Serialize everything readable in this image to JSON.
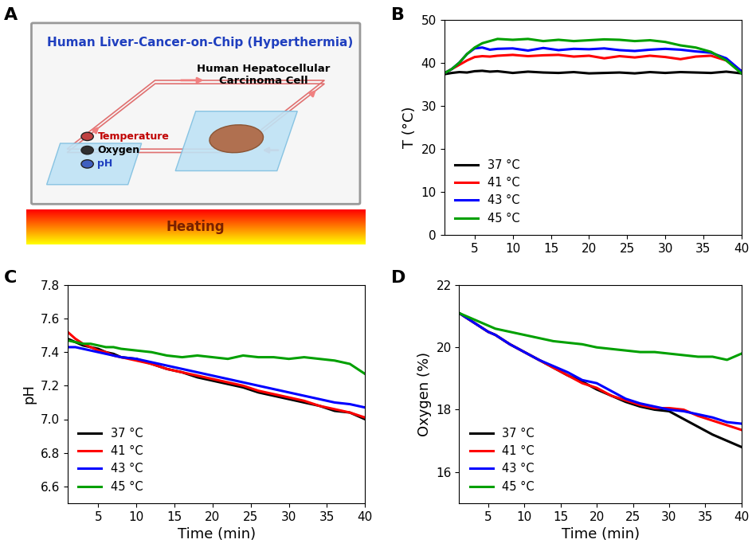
{
  "diagram": {
    "panel_label": "A",
    "title": "Human Liver-Cancer-on-Chip (Hyperthermia)",
    "cell_label": "Human Hepatocellular\nCarcinoma Cell",
    "sensors": [
      "Temperature",
      "Oxygen",
      "pH"
    ],
    "heater_label": "Heating"
  },
  "chart_data": [
    {
      "panel_label": "B",
      "type": "line",
      "ylabel": "T (°C)",
      "x": [
        1,
        2,
        3,
        4,
        5,
        6,
        7,
        8,
        10,
        12,
        14,
        16,
        18,
        20,
        22,
        24,
        26,
        28,
        30,
        32,
        34,
        36,
        38,
        40
      ],
      "xlim": [
        1,
        40
      ],
      "xticks": [
        5,
        10,
        15,
        20,
        25,
        30,
        35,
        40
      ],
      "ylim": [
        0,
        50
      ],
      "yticks": [
        0,
        10,
        20,
        30,
        40,
        50
      ],
      "grid": false,
      "legend": "lower left",
      "series": [
        {
          "name": "37 °C",
          "color": "#000000",
          "values": [
            37.3,
            37.6,
            37.8,
            37.7,
            38.0,
            38.1,
            37.9,
            38.0,
            37.6,
            37.9,
            37.7,
            37.6,
            37.8,
            37.5,
            37.6,
            37.7,
            37.5,
            37.8,
            37.6,
            37.8,
            37.7,
            37.6,
            37.9,
            37.5
          ]
        },
        {
          "name": "41 °C",
          "color": "#ff0000",
          "values": [
            37.5,
            38.5,
            39.5,
            40.5,
            41.3,
            41.5,
            41.4,
            41.6,
            41.8,
            41.5,
            41.7,
            41.8,
            41.4,
            41.6,
            41.0,
            41.5,
            41.2,
            41.6,
            41.3,
            40.8,
            41.4,
            41.6,
            40.5,
            38.0
          ]
        },
        {
          "name": "43 °C",
          "color": "#0000ff",
          "values": [
            37.5,
            38.5,
            40.0,
            42.0,
            43.3,
            43.5,
            43.0,
            43.2,
            43.3,
            42.8,
            43.4,
            42.9,
            43.2,
            43.1,
            43.3,
            42.9,
            42.7,
            43.0,
            43.2,
            43.0,
            42.6,
            42.3,
            41.0,
            38.0
          ]
        },
        {
          "name": "45 °C",
          "color": "#00a000",
          "values": [
            37.5,
            38.5,
            40.0,
            42.0,
            43.5,
            44.5,
            45.0,
            45.5,
            45.3,
            45.5,
            45.0,
            45.3,
            45.0,
            45.2,
            45.4,
            45.3,
            45.0,
            45.2,
            44.8,
            44.0,
            43.5,
            42.5,
            40.5,
            37.5
          ]
        }
      ]
    },
    {
      "panel_label": "C",
      "type": "line",
      "xlabel": "Time (min)",
      "ylabel": "pH",
      "x": [
        1,
        2,
        3,
        4,
        5,
        6,
        7,
        8,
        10,
        12,
        14,
        16,
        18,
        20,
        22,
        24,
        26,
        28,
        30,
        32,
        34,
        36,
        38,
        40
      ],
      "xlim": [
        1,
        40
      ],
      "xticks": [
        5,
        10,
        15,
        20,
        25,
        30,
        35,
        40
      ],
      "ylim": [
        6.5,
        7.8
      ],
      "yticks": [
        6.6,
        6.8,
        {
          "value": 7,
          "label": "7.0"
        },
        7.2,
        7.4,
        7.6,
        7.8
      ],
      "grid": false,
      "legend": "lower left",
      "series": [
        {
          "name": "37 °C",
          "color": "#000000",
          "values": [
            7.48,
            7.46,
            7.44,
            7.43,
            7.42,
            7.4,
            7.39,
            7.37,
            7.36,
            7.33,
            7.3,
            7.28,
            7.25,
            7.23,
            7.21,
            7.19,
            7.16,
            7.14,
            7.12,
            7.1,
            7.08,
            7.05,
            7.04,
            7.0
          ]
        },
        {
          "name": "41 °C",
          "color": "#ff0000",
          "values": [
            7.52,
            7.48,
            7.45,
            7.43,
            7.41,
            7.4,
            7.38,
            7.37,
            7.35,
            7.33,
            7.3,
            7.28,
            7.26,
            7.24,
            7.22,
            7.2,
            7.17,
            7.15,
            7.13,
            7.11,
            7.08,
            7.06,
            7.04,
            7.01
          ]
        },
        {
          "name": "43 °C",
          "color": "#0000ff",
          "values": [
            7.43,
            7.43,
            7.42,
            7.41,
            7.4,
            7.39,
            7.38,
            7.37,
            7.36,
            7.34,
            7.32,
            7.3,
            7.28,
            7.26,
            7.24,
            7.22,
            7.2,
            7.18,
            7.16,
            7.14,
            7.12,
            7.1,
            7.09,
            7.07
          ]
        },
        {
          "name": "45 °C",
          "color": "#00a000",
          "values": [
            7.47,
            7.46,
            7.45,
            7.45,
            7.44,
            7.43,
            7.43,
            7.42,
            7.41,
            7.4,
            7.38,
            7.37,
            7.38,
            7.37,
            7.36,
            7.38,
            7.37,
            7.37,
            7.36,
            7.37,
            7.36,
            7.35,
            7.33,
            7.27
          ]
        }
      ]
    },
    {
      "panel_label": "D",
      "type": "line",
      "xlabel": "Time (min)",
      "ylabel": "Oxygen (%)",
      "x": [
        1,
        2,
        3,
        4,
        5,
        6,
        7,
        8,
        10,
        12,
        14,
        16,
        18,
        20,
        22,
        24,
        26,
        28,
        30,
        32,
        34,
        36,
        38,
        40
      ],
      "xlim": [
        1,
        40
      ],
      "xticks": [
        5,
        10,
        15,
        20,
        25,
        30,
        35,
        40
      ],
      "ylim": [
        15,
        22
      ],
      "yticks": [
        16,
        18,
        20,
        22
      ],
      "grid": false,
      "legend": "lower left",
      "series": [
        {
          "name": "37 °C",
          "color": "#000000",
          "values": [
            21.1,
            20.95,
            20.8,
            20.65,
            20.5,
            20.4,
            20.25,
            20.1,
            19.85,
            19.6,
            19.35,
            19.1,
            18.9,
            18.65,
            18.45,
            18.25,
            18.1,
            18.0,
            17.95,
            17.7,
            17.45,
            17.2,
            17.0,
            16.8
          ]
        },
        {
          "name": "41 °C",
          "color": "#ff0000",
          "values": [
            21.1,
            20.95,
            20.8,
            20.65,
            20.5,
            20.4,
            20.25,
            20.1,
            19.85,
            19.6,
            19.35,
            19.1,
            18.85,
            18.7,
            18.45,
            18.3,
            18.15,
            18.05,
            18.05,
            18.0,
            17.8,
            17.65,
            17.5,
            17.35
          ]
        },
        {
          "name": "43 °C",
          "color": "#0000ff",
          "values": [
            21.1,
            20.95,
            20.8,
            20.65,
            20.5,
            20.4,
            20.25,
            20.1,
            19.85,
            19.6,
            19.4,
            19.2,
            18.95,
            18.85,
            18.6,
            18.35,
            18.2,
            18.1,
            18.0,
            17.95,
            17.85,
            17.75,
            17.6,
            17.55
          ]
        },
        {
          "name": "45 °C",
          "color": "#00a000",
          "values": [
            21.1,
            21.0,
            20.9,
            20.8,
            20.7,
            20.6,
            20.55,
            20.5,
            20.4,
            20.3,
            20.2,
            20.15,
            20.1,
            20.0,
            19.95,
            19.9,
            19.85,
            19.85,
            19.8,
            19.75,
            19.7,
            19.7,
            19.6,
            19.8
          ]
        }
      ]
    }
  ]
}
